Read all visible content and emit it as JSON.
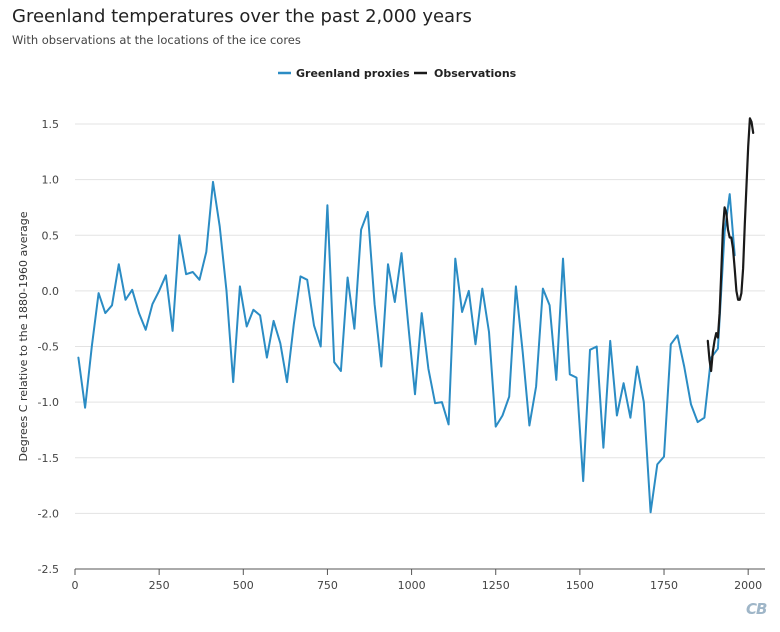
{
  "header": {
    "title": "Greenland temperatures over the past 2,000 years",
    "subtitle": "With observations at the locations of the ice cores"
  },
  "logo": {
    "text": "CB"
  },
  "chart_data": {
    "type": "line",
    "title": "Greenland temperatures over the past 2,000 years",
    "subtitle": "With observations at the locations of the ice cores",
    "xlabel": "",
    "ylabel": "Degrees C relative to the 1880-1960 average",
    "xlim": [
      0,
      2050
    ],
    "ylim": [
      -2.5,
      1.5
    ],
    "xticks": [
      0,
      250,
      500,
      750,
      1000,
      1250,
      1500,
      1750,
      2000
    ],
    "yticks": [
      -2.5,
      -2.0,
      -1.5,
      -1.0,
      -0.5,
      0.0,
      0.5,
      1.0,
      1.5
    ],
    "ytick_labels": [
      "-2.5",
      "-2.0",
      "-1.5",
      "-1.0",
      "-0.5",
      "0.0",
      "0.5",
      "1.0",
      "1.5"
    ],
    "grid": "horizontal",
    "legend_position": "top-center",
    "series": [
      {
        "name": "Greenland proxies",
        "color": "#2b8cc4",
        "x": [
          10,
          30,
          50,
          70,
          90,
          110,
          130,
          150,
          170,
          190,
          210,
          230,
          250,
          270,
          290,
          310,
          330,
          350,
          370,
          390,
          410,
          430,
          450,
          470,
          490,
          510,
          530,
          550,
          570,
          590,
          610,
          630,
          650,
          670,
          690,
          710,
          730,
          750,
          770,
          790,
          810,
          830,
          850,
          870,
          890,
          910,
          930,
          950,
          970,
          990,
          1010,
          1030,
          1050,
          1070,
          1090,
          1110,
          1130,
          1150,
          1170,
          1190,
          1210,
          1230,
          1250,
          1270,
          1290,
          1310,
          1330,
          1350,
          1370,
          1390,
          1410,
          1430,
          1450,
          1470,
          1490,
          1510,
          1530,
          1550,
          1570,
          1590,
          1610,
          1630,
          1650,
          1670,
          1690,
          1710,
          1730,
          1750,
          1770,
          1790,
          1810,
          1830,
          1850,
          1870,
          1890,
          1910,
          1930,
          1945,
          1960
        ],
        "values": [
          -0.6,
          -1.05,
          -0.5,
          -0.02,
          -0.2,
          -0.13,
          0.24,
          -0.08,
          0.01,
          -0.2,
          -0.35,
          -0.12,
          0.0,
          0.14,
          -0.36,
          0.5,
          0.15,
          0.17,
          0.1,
          0.35,
          0.98,
          0.58,
          0.0,
          -0.82,
          0.04,
          -0.32,
          -0.17,
          -0.22,
          -0.6,
          -0.27,
          -0.47,
          -0.82,
          -0.3,
          0.13,
          0.1,
          -0.31,
          -0.5,
          0.77,
          -0.64,
          -0.72,
          0.12,
          -0.34,
          0.55,
          0.71,
          -0.12,
          -0.68,
          0.24,
          -0.1,
          0.34,
          -0.3,
          -0.93,
          -0.2,
          -0.7,
          -1.01,
          -1.0,
          -1.2,
          0.29,
          -0.19,
          0.0,
          -0.48,
          0.02,
          -0.37,
          -1.22,
          -1.12,
          -0.95,
          0.04,
          -0.55,
          -1.21,
          -0.86,
          0.02,
          -0.13,
          -0.8,
          0.29,
          -0.75,
          -0.78,
          -1.71,
          -0.53,
          -0.5,
          -1.41,
          -0.45,
          -1.12,
          -0.83,
          -1.14,
          -0.68,
          -1.0,
          -1.99,
          -1.56,
          -1.49,
          -0.48,
          -0.4,
          -0.68,
          -1.02,
          -1.18,
          -1.14,
          -0.6,
          -0.52,
          0.53,
          0.87,
          0.32
        ]
      },
      {
        "name": "Observations",
        "color": "#1a1a1a",
        "x": [
          1880,
          1885,
          1890,
          1895,
          1900,
          1905,
          1910,
          1915,
          1920,
          1925,
          1930,
          1935,
          1940,
          1945,
          1950,
          1955,
          1960,
          1965,
          1970,
          1975,
          1980,
          1985,
          1990,
          1995,
          2000,
          2005,
          2010,
          2015
        ],
        "values": [
          -0.45,
          -0.62,
          -0.72,
          -0.55,
          -0.45,
          -0.38,
          -0.42,
          -0.2,
          0.15,
          0.55,
          0.75,
          0.7,
          0.55,
          0.48,
          0.48,
          0.38,
          0.2,
          0.0,
          -0.08,
          -0.08,
          -0.02,
          0.2,
          0.6,
          0.95,
          1.3,
          1.55,
          1.52,
          1.42
        ]
      }
    ]
  }
}
